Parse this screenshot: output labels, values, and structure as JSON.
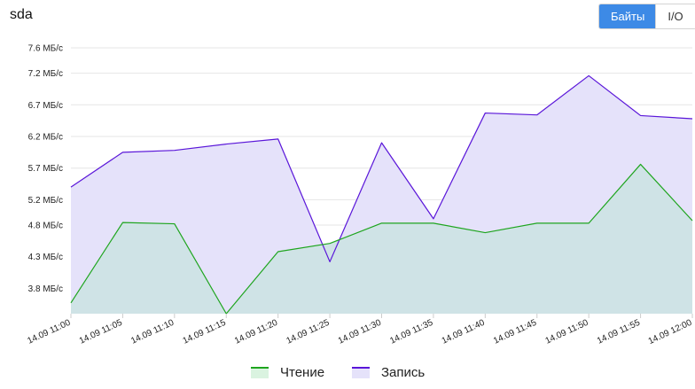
{
  "header": {
    "title": "sda",
    "toggle_bytes": "Байты",
    "toggle_io": "I/O"
  },
  "colors": {
    "read": "#1ea51e",
    "read_fill": "#cfe3e6",
    "write": "#5a16d9",
    "write_fill": "#e5e2fa",
    "grid": "#e6e6e6",
    "toggle_active": "#3d8ae6"
  },
  "chart_data": {
    "type": "area",
    "title": "",
    "xlabel": "",
    "ylabel": "",
    "x": [
      "14.09 11:00",
      "14.09 11:05",
      "14.09 11:10",
      "14.09 11:15",
      "14.09 11:20",
      "14.09 11:25",
      "14.09 11:30",
      "14.09 11:35",
      "14.09 11:40",
      "14.09 11:45",
      "14.09 11:50",
      "14.09 11:55",
      "14.09 12:00"
    ],
    "y_ticks": [
      "3.8 МБ/с",
      "4.3 МБ/с",
      "4.8 МБ/с",
      "5.2 МБ/с",
      "5.7 МБ/с",
      "6.2 МБ/с",
      "6.7 МБ/с",
      "7.2 МБ/с",
      "7.6 МБ/с"
    ],
    "y_tick_values": [
      3.8,
      4.3,
      4.8,
      5.2,
      5.7,
      6.2,
      6.7,
      7.2,
      7.6
    ],
    "ylim": [
      3.4,
      7.6
    ],
    "unit": "МБ/с",
    "grid": true,
    "legend_position": "bottom",
    "series": [
      {
        "name": "Запись",
        "color": "#5a16d9",
        "fill": "#e5e2fa",
        "values": [
          5.4,
          5.95,
          5.98,
          6.08,
          6.16,
          4.22,
          6.1,
          4.9,
          6.57,
          6.54,
          7.16,
          6.53,
          6.48
        ]
      },
      {
        "name": "Чтение",
        "color": "#1ea51e",
        "fill": "#cfe3e6",
        "values": [
          3.57,
          4.84,
          4.82,
          3.4,
          4.38,
          4.51,
          4.83,
          4.83,
          4.68,
          4.83,
          4.83,
          5.76,
          4.87
        ]
      }
    ]
  },
  "legend": {
    "read_label": "Чтение",
    "write_label": "Запись"
  }
}
